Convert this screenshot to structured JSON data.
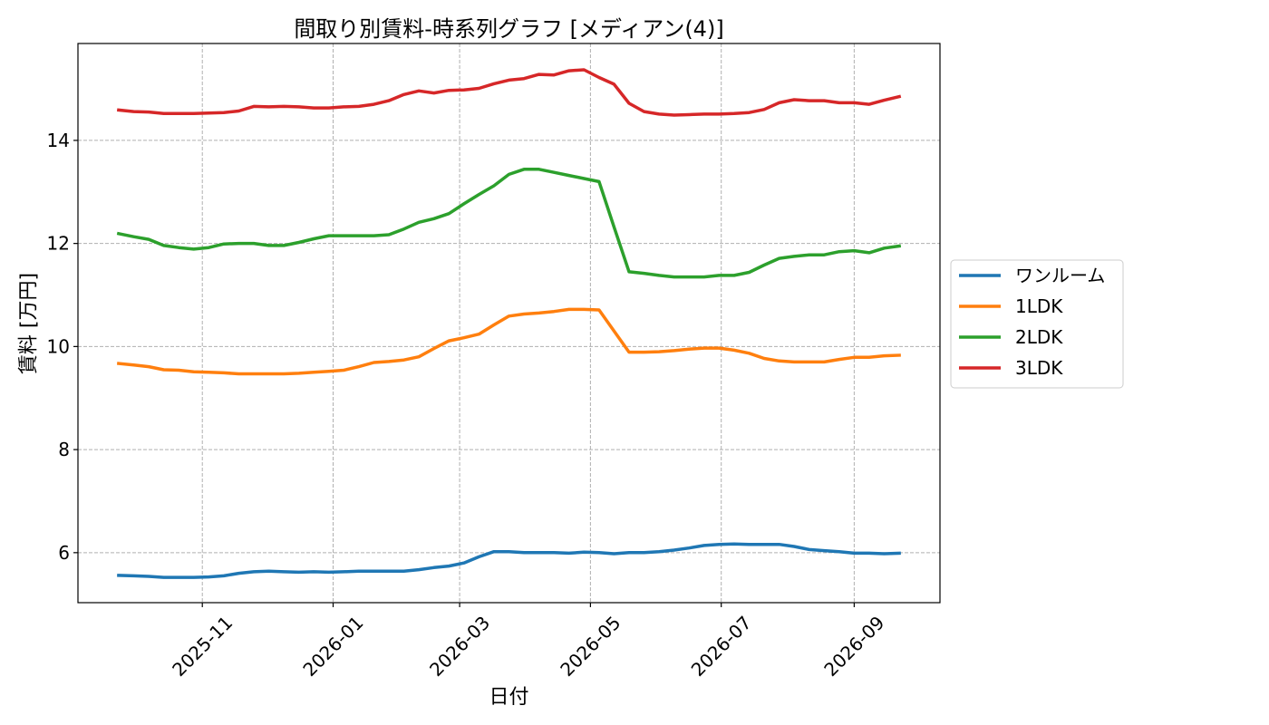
{
  "chart_data": {
    "type": "line",
    "title": "間取り別賃料-時系列グラフ [メディアン(4)]",
    "xlabel": "日付",
    "ylabel": "賃料 [万円]",
    "xlim": [
      "2025-09-04",
      "2026-10-11"
    ],
    "ylim": [
      5.03,
      15.88
    ],
    "grid": true,
    "legend": "outside-right",
    "xticks": [
      {
        "value": "2025-11-01",
        "label": "2025-11"
      },
      {
        "value": "2026-01-01",
        "label": "2026-01"
      },
      {
        "value": "2026-03-01",
        "label": "2026-03"
      },
      {
        "value": "2026-05-01",
        "label": "2026-05"
      },
      {
        "value": "2026-07-01",
        "label": "2026-07"
      },
      {
        "value": "2026-09-01",
        "label": "2026-09"
      }
    ],
    "yticks": [
      6,
      8,
      10,
      12,
      14
    ],
    "x": [
      "2025-09-23",
      "2025-09-30",
      "2025-10-07",
      "2025-10-14",
      "2025-10-21",
      "2025-10-28",
      "2025-11-04",
      "2025-11-11",
      "2025-11-18",
      "2025-11-25",
      "2025-12-02",
      "2025-12-09",
      "2025-12-16",
      "2025-12-23",
      "2025-12-30",
      "2026-01-06",
      "2026-01-13",
      "2026-01-20",
      "2026-01-27",
      "2026-02-03",
      "2026-02-10",
      "2026-02-17",
      "2026-02-24",
      "2026-03-03",
      "2026-03-10",
      "2026-03-17",
      "2026-03-24",
      "2026-03-31",
      "2026-04-07",
      "2026-04-14",
      "2026-04-21",
      "2026-04-28",
      "2026-05-05",
      "2026-05-12",
      "2026-05-19",
      "2026-05-26",
      "2026-06-02",
      "2026-06-09",
      "2026-06-16",
      "2026-06-23",
      "2026-06-30",
      "2026-07-07",
      "2026-07-14",
      "2026-07-21",
      "2026-07-28",
      "2026-08-04",
      "2026-08-11",
      "2026-08-18",
      "2026-08-25",
      "2026-09-01",
      "2026-09-08",
      "2026-09-15",
      "2026-09-22"
    ],
    "series": [
      {
        "name": "ワンルーム",
        "color": "#1f77b4",
        "values": [
          5.56,
          5.55,
          5.54,
          5.52,
          5.52,
          5.52,
          5.53,
          5.55,
          5.6,
          5.63,
          5.64,
          5.63,
          5.62,
          5.63,
          5.62,
          5.63,
          5.64,
          5.64,
          5.64,
          5.64,
          5.67,
          5.71,
          5.74,
          5.8,
          5.92,
          6.02,
          6.02,
          6.0,
          6.0,
          6.0,
          5.99,
          6.01,
          6.0,
          5.98,
          6.0,
          6.0,
          6.02,
          6.05,
          6.09,
          6.14,
          6.16,
          6.17,
          6.16,
          6.16,
          6.16,
          6.12,
          6.06,
          6.04,
          6.02,
          5.99,
          5.99,
          5.98,
          5.99
        ]
      },
      {
        "name": "1LDK",
        "color": "#ff7f0e",
        "values": [
          9.67,
          9.64,
          9.61,
          9.55,
          9.54,
          9.51,
          9.5,
          9.49,
          9.47,
          9.47,
          9.47,
          9.47,
          9.48,
          9.5,
          9.52,
          9.54,
          9.61,
          9.69,
          9.71,
          9.74,
          9.8,
          9.96,
          10.11,
          10.17,
          10.24,
          10.42,
          10.59,
          10.63,
          10.65,
          10.68,
          10.72,
          10.72,
          10.71,
          10.3,
          9.89,
          9.89,
          9.9,
          9.92,
          9.95,
          9.97,
          9.97,
          9.93,
          9.87,
          9.77,
          9.72,
          9.7,
          9.7,
          9.7,
          9.75,
          9.79,
          9.79,
          9.82,
          9.83
        ]
      },
      {
        "name": "2LDK",
        "color": "#2ca02c",
        "values": [
          12.19,
          12.13,
          12.08,
          11.96,
          11.92,
          11.89,
          11.92,
          11.99,
          12.0,
          12.0,
          11.96,
          11.96,
          12.02,
          12.09,
          12.15,
          12.15,
          12.15,
          12.15,
          12.17,
          12.28,
          12.41,
          12.48,
          12.58,
          12.77,
          12.95,
          13.12,
          13.34,
          13.44,
          13.44,
          13.38,
          13.32,
          13.26,
          13.2,
          12.32,
          11.45,
          11.42,
          11.38,
          11.35,
          11.35,
          11.35,
          11.38,
          11.38,
          11.44,
          11.58,
          11.71,
          11.75,
          11.78,
          11.78,
          11.84,
          11.86,
          11.82,
          11.91,
          11.95
        ]
      },
      {
        "name": "3LDK",
        "color": "#d62728",
        "values": [
          14.59,
          14.56,
          14.55,
          14.52,
          14.52,
          14.52,
          14.53,
          14.54,
          14.57,
          14.66,
          14.65,
          14.66,
          14.65,
          14.63,
          14.63,
          14.65,
          14.66,
          14.7,
          14.77,
          14.89,
          14.96,
          14.92,
          14.97,
          14.98,
          15.01,
          15.1,
          15.17,
          15.2,
          15.28,
          15.27,
          15.35,
          15.37,
          15.22,
          15.09,
          14.72,
          14.56,
          14.51,
          14.49,
          14.5,
          14.51,
          14.51,
          14.52,
          14.54,
          14.6,
          14.73,
          14.79,
          14.77,
          14.77,
          14.73,
          14.73,
          14.7,
          14.78,
          14.85
        ]
      }
    ]
  }
}
